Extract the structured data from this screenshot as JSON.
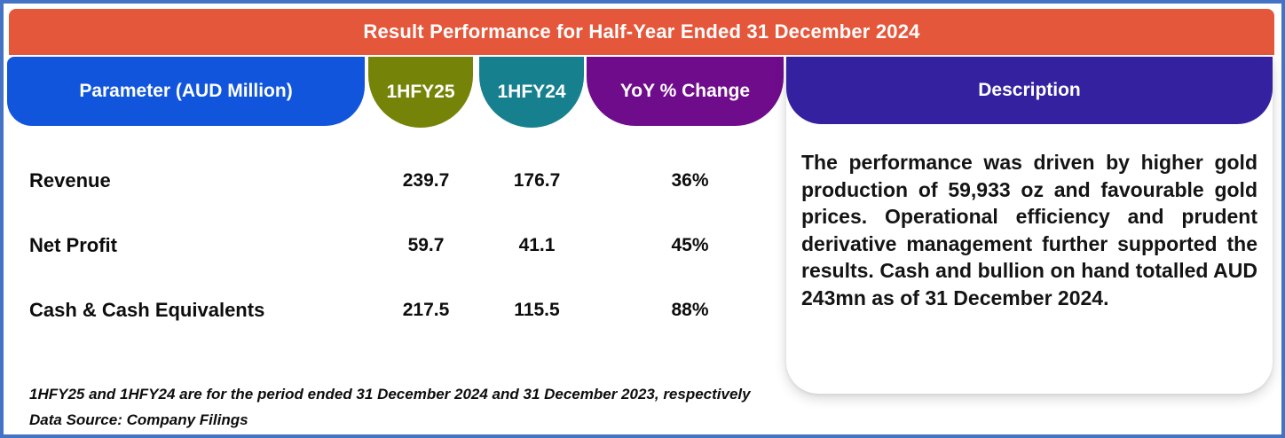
{
  "title": "Result Performance for Half-Year Ended 31 December 2024",
  "columns": {
    "parameter": "Parameter (AUD Million)",
    "hfy25": "1HFY25",
    "hfy24": "1HFY24",
    "yoy": "YoY % Change",
    "description": "Description"
  },
  "table": {
    "rows": [
      {
        "parameter": "Revenue",
        "hfy25": "239.7",
        "hfy24": "176.7",
        "yoy": "36%"
      },
      {
        "parameter": "Net Profit",
        "hfy25": "59.7",
        "hfy24": "41.1",
        "yoy": "45%"
      },
      {
        "parameter": "Cash & Cash Equivalents",
        "hfy25": "217.5",
        "hfy24": "115.5",
        "yoy": "88%"
      }
    ]
  },
  "description": {
    "text": "The performance was driven by higher gold production of 59,933 oz and favourable gold prices. Operational efficiency and prudent derivative management further supported the results. Cash and bullion on hand totalled AUD 243mn as of 31 December 2024."
  },
  "footnotes": [
    "1HFY25 and 1HFY24 are for the period ended 31 December 2024 and 31 December 2023, respectively",
    "Data Source: Company Filings"
  ],
  "colors": {
    "header_bar": "#E5573B",
    "parameter_pill": "#1155DC",
    "hfy25_pill": "#758408",
    "hfy24_pill": "#17808E",
    "yoy_pill": "#6F0C8C",
    "description_pill": "#33219F",
    "outer_border": "#4472C4"
  },
  "chart_data": {
    "type": "table",
    "title": "Result Performance for Half-Year Ended 31 December 2024",
    "columns": [
      "Parameter (AUD Million)",
      "1HFY25",
      "1HFY24",
      "YoY % Change"
    ],
    "rows": [
      [
        "Revenue",
        239.7,
        176.7,
        "36%"
      ],
      [
        "Net Profit",
        59.7,
        41.1,
        "45%"
      ],
      [
        "Cash & Cash Equivalents",
        217.5,
        115.5,
        "88%"
      ]
    ],
    "notes": "1HFY25 and 1HFY24 are for the period ended 31 December 2024 and 31 December 2023, respectively. Data Source: Company Filings."
  }
}
